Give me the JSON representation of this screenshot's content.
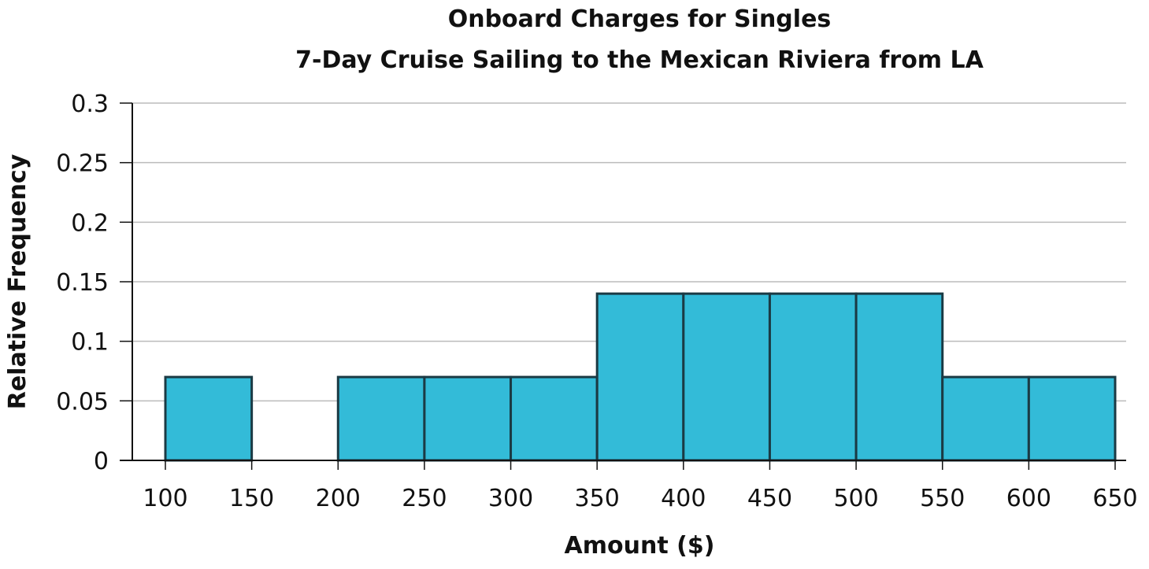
{
  "chart_data": {
    "type": "bar",
    "title": "Onboard Charges for Singles",
    "subtitle": "7-Day Cruise Sailing to the Mexican Riviera from LA",
    "xlabel": "Amount ($)",
    "ylabel": "Relative Frequency",
    "bin_edges": [
      100,
      150,
      200,
      250,
      300,
      350,
      400,
      450,
      500,
      550,
      600,
      650
    ],
    "values": [
      0.07,
      0,
      0.07,
      0.07,
      0.07,
      0.14,
      0.14,
      0.14,
      0.14,
      0.07,
      0.07
    ],
    "xlim": [
      100,
      650
    ],
    "ylim": [
      0,
      0.3
    ],
    "x_ticks": [
      "100",
      "150",
      "200",
      "250",
      "300",
      "350",
      "400",
      "450",
      "500",
      "550",
      "600",
      "650"
    ],
    "y_ticks": [
      "0",
      "0.05",
      "0.1",
      "0.15",
      "0.2",
      "0.25",
      "0.3"
    ],
    "grid": true,
    "colors": {
      "bar_fill": "#33BBD8",
      "bar_stroke": "#1B3A44",
      "grid": "#BBBBBB",
      "axis": "#111111"
    }
  }
}
